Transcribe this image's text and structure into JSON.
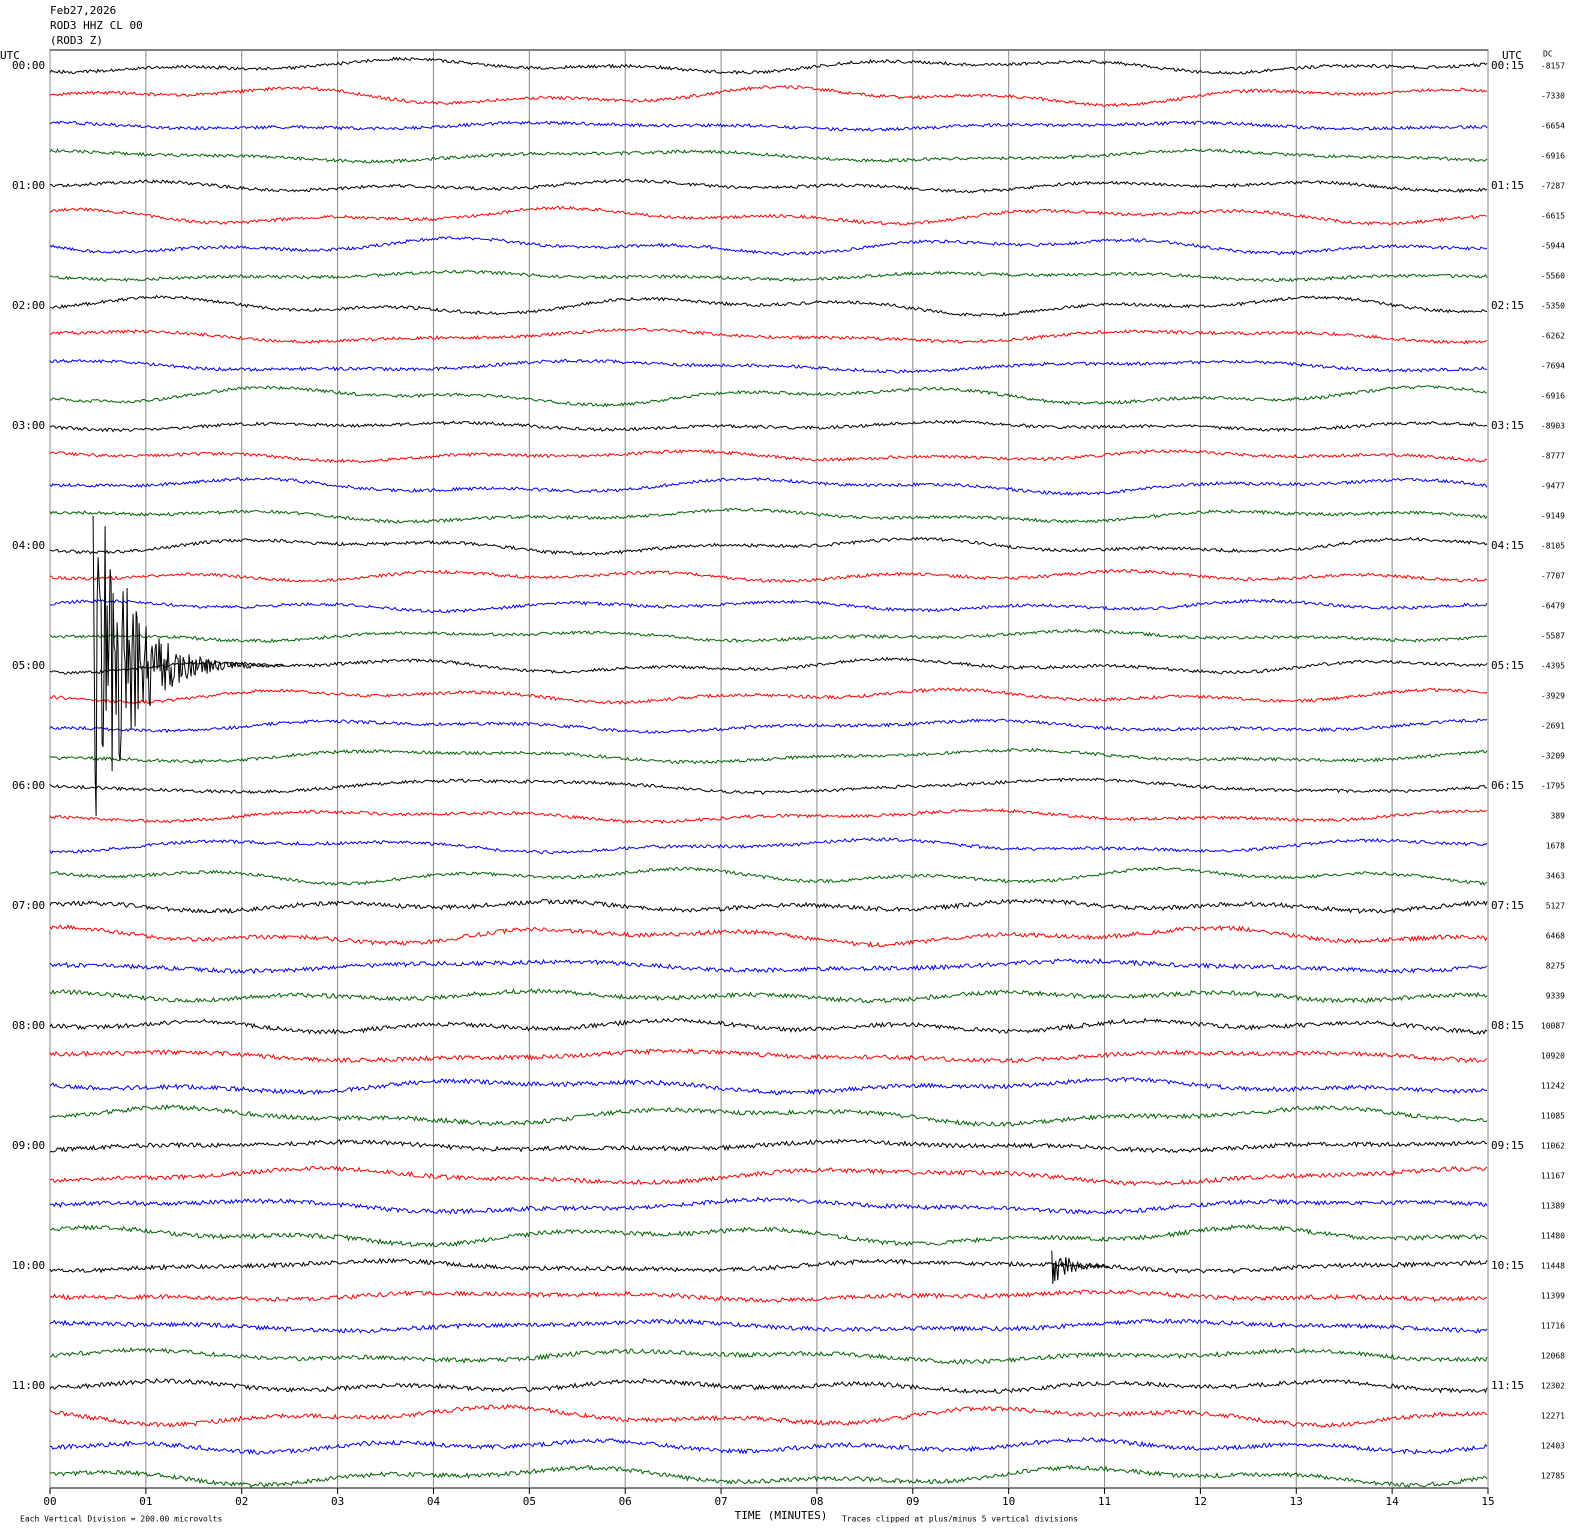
{
  "chart_data": {
    "type": "helicorder",
    "title": "Feb27,2026",
    "subtitle": "ROD3 HHZ CL 00",
    "subtitle2": "(ROD3 Z)",
    "left_unit": "UTC",
    "right_unit": "UTC",
    "dc_label": "DC",
    "x_label": "TIME (MINUTES)",
    "scale_note": "Each Vertical Division =  200.00 microvolts",
    "clip_note": "Traces clipped at plus/minus 5 vertical divisions",
    "colors": [
      "#000000",
      "#ff0000",
      "#0000ff",
      "#006400"
    ],
    "xlim": [
      0,
      15
    ],
    "xticks": [
      {
        "value": 0,
        "label": "00"
      },
      {
        "value": 1,
        "label": "01"
      },
      {
        "value": 2,
        "label": "02"
      },
      {
        "value": 3,
        "label": "03"
      },
      {
        "value": 4,
        "label": "04"
      },
      {
        "value": 5,
        "label": "05"
      },
      {
        "value": 6,
        "label": "06"
      },
      {
        "value": 7,
        "label": "07"
      },
      {
        "value": 8,
        "label": "08"
      },
      {
        "value": 9,
        "label": "09"
      },
      {
        "value": 10,
        "label": "10"
      },
      {
        "value": 11,
        "label": "11"
      },
      {
        "value": 12,
        "label": "12"
      },
      {
        "value": 13,
        "label": "13"
      },
      {
        "value": 14,
        "label": "14"
      },
      {
        "value": 15,
        "label": "15"
      }
    ],
    "left_labels": [
      "00:00",
      "01:00",
      "02:00",
      "03:00",
      "04:00",
      "05:00",
      "06:00",
      "07:00",
      "08:00",
      "09:00",
      "10:00",
      "11:00"
    ],
    "right_labels": [
      "00:15",
      "01:15",
      "02:15",
      "03:15",
      "04:15",
      "05:15",
      "06:15",
      "07:15",
      "08:15",
      "09:15",
      "10:15",
      "11:15"
    ],
    "dc": [
      -8157,
      -7330,
      -6654,
      -6916,
      -7287,
      -6615,
      -5944,
      -5560,
      -5350,
      -6262,
      -7694,
      -6916,
      -8903,
      -8777,
      -9477,
      -9149,
      -8105,
      -7707,
      -6479,
      -5587,
      -4395,
      -3929,
      -2691,
      -3209,
      -1795,
      389,
      1678,
      3463,
      5127,
      6468,
      8275,
      9339,
      10087,
      10920,
      11242,
      11085,
      11062,
      11167,
      11389,
      11480,
      11448,
      11399,
      11716,
      12068,
      12302,
      12271,
      12403,
      12785
    ],
    "events": [
      {
        "row": 20,
        "minute": 0.45,
        "amplitude": 5
      },
      {
        "row": 40,
        "minute": 10.45,
        "amplitude": 0.6
      }
    ]
  }
}
